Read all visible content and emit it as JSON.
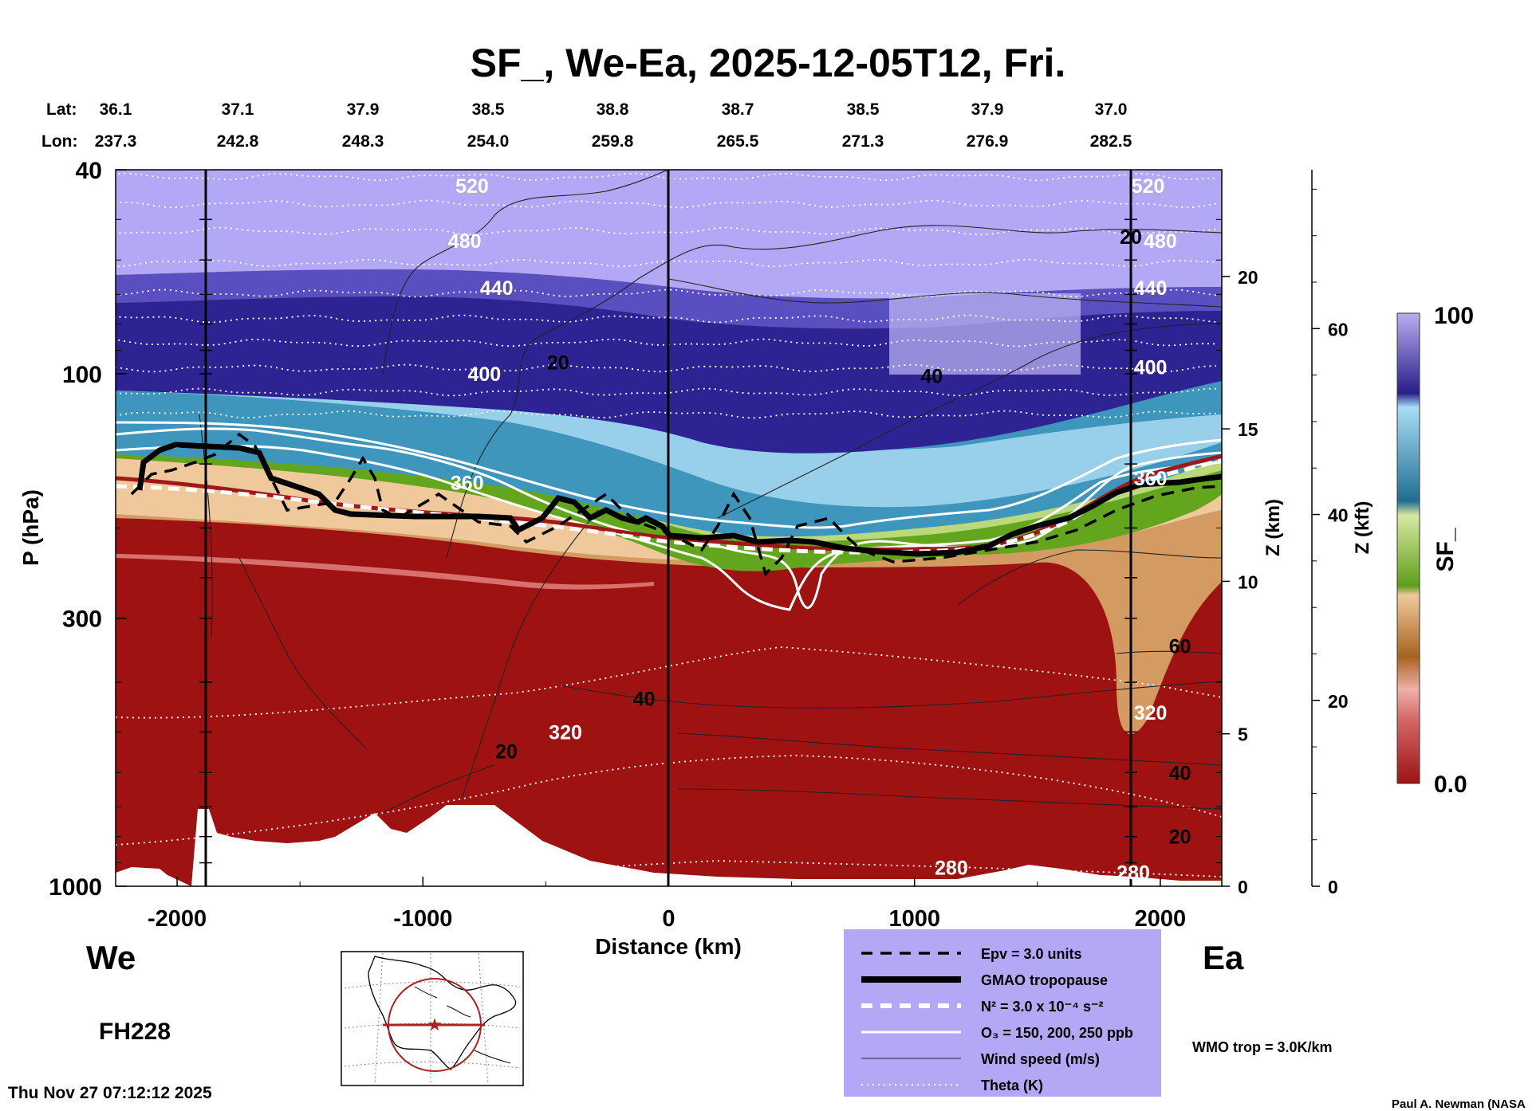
{
  "title": "SF_, We-Ea, 2025-12-05T12, Fri.",
  "header_rows": {
    "lat_label": "Lat:",
    "lon_label": "Lon:",
    "lat": [
      "36.1",
      "37.1",
      "37.9",
      "38.5",
      "38.8",
      "38.7",
      "38.5",
      "37.9",
      "37.0"
    ],
    "lon": [
      "237.3",
      "242.8",
      "248.3",
      "254.0",
      "259.8",
      "265.5",
      "271.3",
      "276.9",
      "282.5"
    ]
  },
  "chart_data": {
    "type": "heatmap",
    "title": "SF_, We-Ea, 2025-12-05T12, Fri.",
    "xlabel": "Distance (km)",
    "ylabel": "P (hPa)",
    "y2label": "Z (km)",
    "y3label": "Z (kft)",
    "xlim": [
      -2250,
      2250
    ],
    "ylim": [
      1000,
      40
    ],
    "y_scale": "log",
    "x_ticks": [
      -2000,
      -1000,
      0,
      1000,
      2000
    ],
    "y_ticks": [
      40,
      100,
      300,
      1000
    ],
    "z_km_ticks": [
      0,
      5,
      10,
      15,
      20
    ],
    "z_kft_ticks": [
      0,
      20,
      40,
      60
    ],
    "colorbar": {
      "label": "SF_",
      "min_label": "0.0",
      "max_label": "100",
      "range": [
        0,
        100
      ]
    },
    "left_label": "We",
    "right_label": "Ea",
    "theta_labels": [
      {
        "x": -800,
        "p": 43,
        "text": "520"
      },
      {
        "x": 1950,
        "p": 43,
        "text": "520"
      },
      {
        "x": -830,
        "p": 55,
        "text": "480"
      },
      {
        "x": 2000,
        "p": 55,
        "text": "480"
      },
      {
        "x": -700,
        "p": 68,
        "text": "440"
      },
      {
        "x": 1960,
        "p": 68,
        "text": "440"
      },
      {
        "x": -750,
        "p": 100,
        "text": "400"
      },
      {
        "x": 1960,
        "p": 97,
        "text": "400"
      },
      {
        "x": -820,
        "p": 163,
        "text": "360"
      },
      {
        "x": 1960,
        "p": 160,
        "text": "360"
      },
      {
        "x": -420,
        "p": 500,
        "text": "320"
      },
      {
        "x": 1960,
        "p": 458,
        "text": "320"
      },
      {
        "x": 1150,
        "p": 920,
        "text": "280"
      },
      {
        "x": 1890,
        "p": 940,
        "text": "280"
      }
    ],
    "wind_labels": [
      {
        "x": -450,
        "p": 95,
        "text": "20"
      },
      {
        "x": 1070,
        "p": 101,
        "text": "40"
      },
      {
        "x": 1880,
        "p": 54,
        "text": "20"
      },
      {
        "x": -100,
        "p": 430,
        "text": "40"
      },
      {
        "x": -660,
        "p": 545,
        "text": "20"
      },
      {
        "x": 2080,
        "p": 340,
        "text": "60"
      },
      {
        "x": 2080,
        "p": 600,
        "text": "40"
      },
      {
        "x": 2080,
        "p": 800,
        "text": "20"
      }
    ],
    "legend": [
      {
        "style": "dashed-black",
        "text": "Epv = 3.0 units"
      },
      {
        "style": "thick-black",
        "text": "GMAO tropopause"
      },
      {
        "style": "dashed-white",
        "text": "N² = 3.0 x 10⁻⁴ s⁻²"
      },
      {
        "style": "solid-white",
        "text": "O₃ = 150, 200, 250 ppb"
      },
      {
        "style": "thin-black",
        "text": "Wind speed (m/s)"
      },
      {
        "style": "dotted-white",
        "text": "Theta (K)"
      }
    ],
    "wmo_note": "WMO trop = 3.0K/km"
  },
  "forecast_hour": "FH228",
  "timestamp": "Thu Nov 27 07:12:12 2025",
  "credit": "Paul A. Newman (NASA",
  "colors": {
    "background": "#ffffff",
    "legend_bg": "#b3a8f5",
    "wmo_red": "#b02a20",
    "trop_red": "#a01818",
    "deep_red": "#9e1212",
    "green": "#63a51c",
    "tan": "#d4a372",
    "teal": "#3e93b8",
    "blue": "#3b2f9c",
    "lavender": "#b3a8f5"
  }
}
